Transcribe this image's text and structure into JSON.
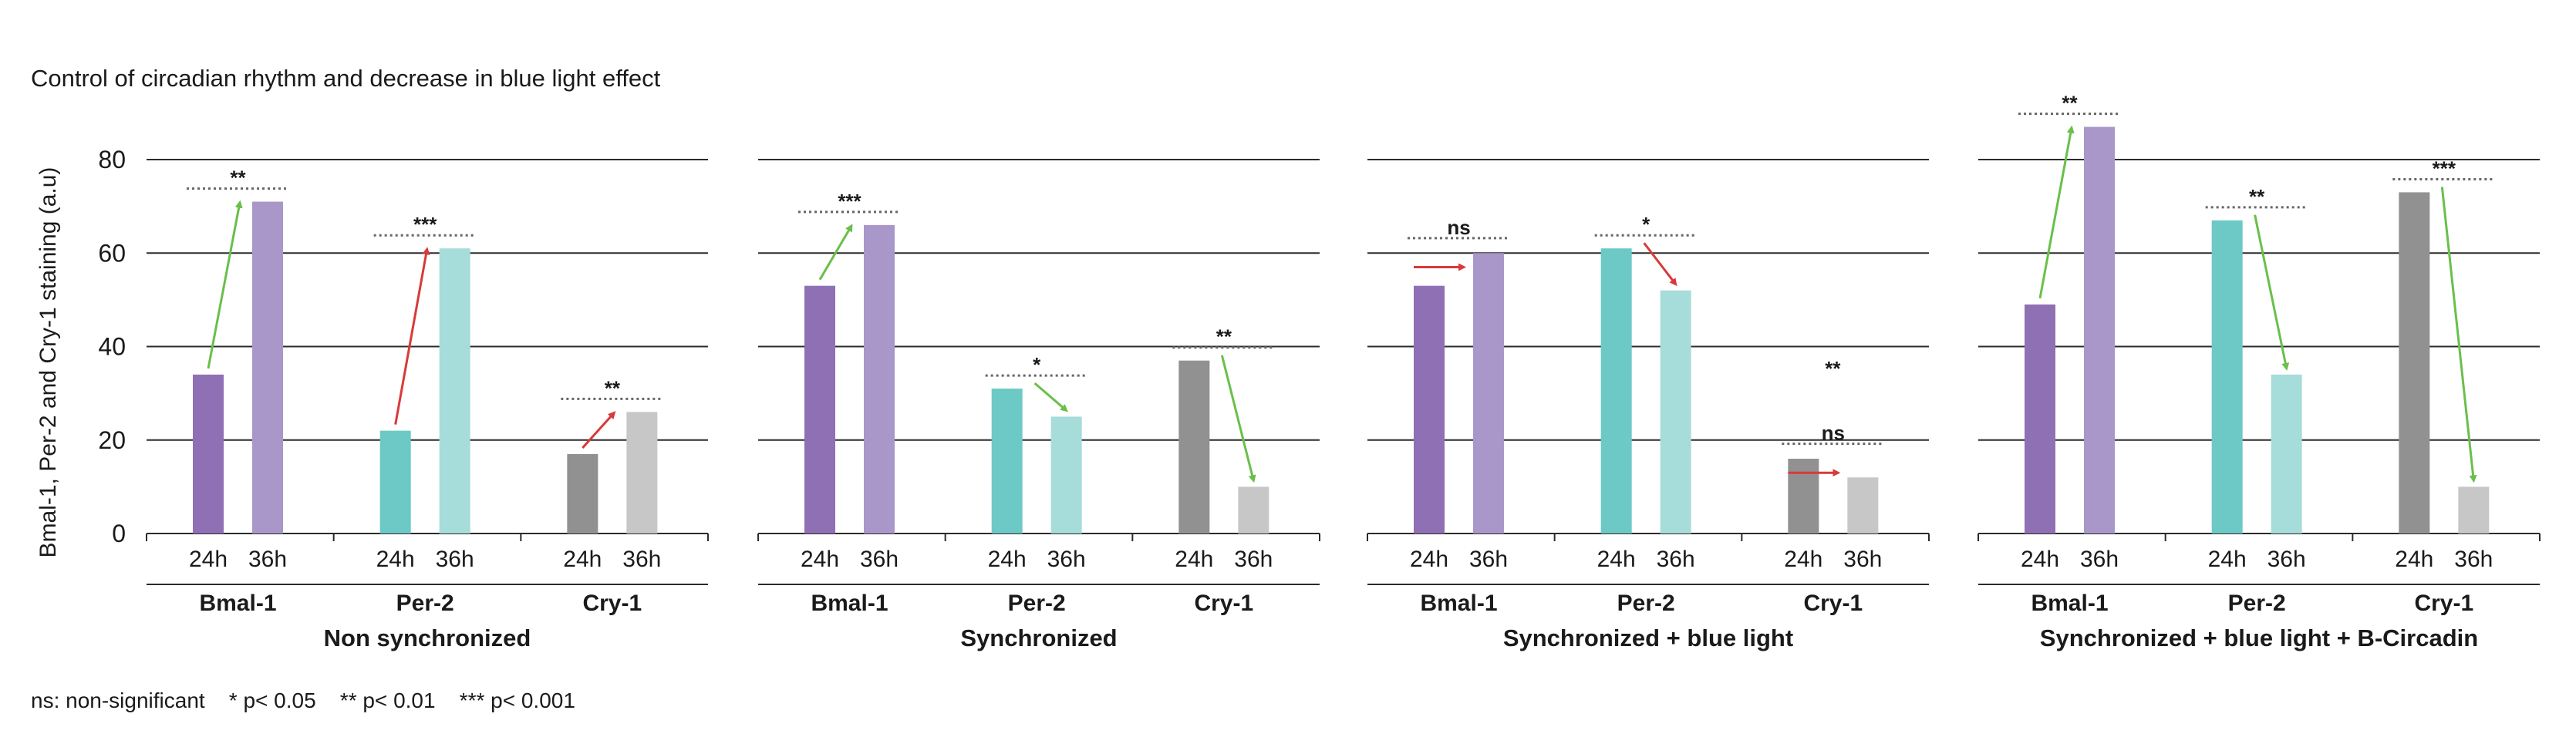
{
  "title": "Control of circadian rhythm and decrease in blue light effect",
  "legend_text": "ns: non-significant    * p< 0.05    ** p< 0.01    *** p< 0.001",
  "colors": {
    "bmal_24": "#8f70b4",
    "bmal_36": "#a997c9",
    "per_24": "#6cc9c6",
    "per_36": "#a6dcd9",
    "cry_24": "#919191",
    "cry_36": "#c7c7c7",
    "up_green": "#6abf4b",
    "up_red": "#d83a3a",
    "down_green": "#6abf4b",
    "down_red": "#d83a3a"
  },
  "chart_data": {
    "type": "bar",
    "title": "Control of circadian rhythm and decrease in blue light effect",
    "ylabel": "Bmal-1, Per-2 and Cry-1 staining (a.u)",
    "ylim": [
      0,
      80
    ],
    "yticks": [
      0,
      20,
      40,
      60,
      80
    ],
    "time_labels": [
      "24h",
      "36h"
    ],
    "panels": [
      {
        "name": "Non synchronized",
        "groups": [
          {
            "gene": "Bmal-1",
            "values": [
              34,
              71
            ],
            "sig": "**",
            "arrow": "up",
            "arrow_color": "green"
          },
          {
            "gene": "Per-2",
            "values": [
              22,
              61
            ],
            "sig": "***",
            "arrow": "up",
            "arrow_color": "red"
          },
          {
            "gene": "Cry-1",
            "values": [
              17,
              26
            ],
            "sig": "**",
            "arrow": "up",
            "arrow_color": "red"
          }
        ]
      },
      {
        "name": "Synchronized",
        "groups": [
          {
            "gene": "Bmal-1",
            "values": [
              53,
              66
            ],
            "sig": "***",
            "arrow": "up",
            "arrow_color": "green"
          },
          {
            "gene": "Per-2",
            "values": [
              31,
              25
            ],
            "sig": "*",
            "arrow": "down",
            "arrow_color": "green"
          },
          {
            "gene": "Cry-1",
            "values": [
              37,
              10
            ],
            "sig": "**",
            "arrow": "down",
            "arrow_color": "green"
          }
        ]
      },
      {
        "name": "Synchronized + blue light",
        "extra_label": "**",
        "groups": [
          {
            "gene": "Bmal-1",
            "values": [
              53,
              60
            ],
            "sig": "ns",
            "arrow": "flat",
            "arrow_color": "red"
          },
          {
            "gene": "Per-2",
            "values": [
              61,
              52
            ],
            "sig": "*",
            "arrow": "down",
            "arrow_color": "red"
          },
          {
            "gene": "Cry-1",
            "values": [
              16,
              12
            ],
            "sig": "ns",
            "arrow": "flat",
            "arrow_color": "red"
          }
        ]
      },
      {
        "name": "Synchronized + blue light + B-Circadin",
        "groups": [
          {
            "gene": "Bmal-1",
            "values": [
              49,
              87
            ],
            "sig": "**",
            "arrow": "up",
            "arrow_color": "green"
          },
          {
            "gene": "Per-2",
            "values": [
              67,
              34
            ],
            "sig": "**",
            "arrow": "down",
            "arrow_color": "green"
          },
          {
            "gene": "Cry-1",
            "values": [
              73,
              10
            ],
            "sig": "***",
            "arrow": "down",
            "arrow_color": "green"
          }
        ]
      }
    ]
  }
}
